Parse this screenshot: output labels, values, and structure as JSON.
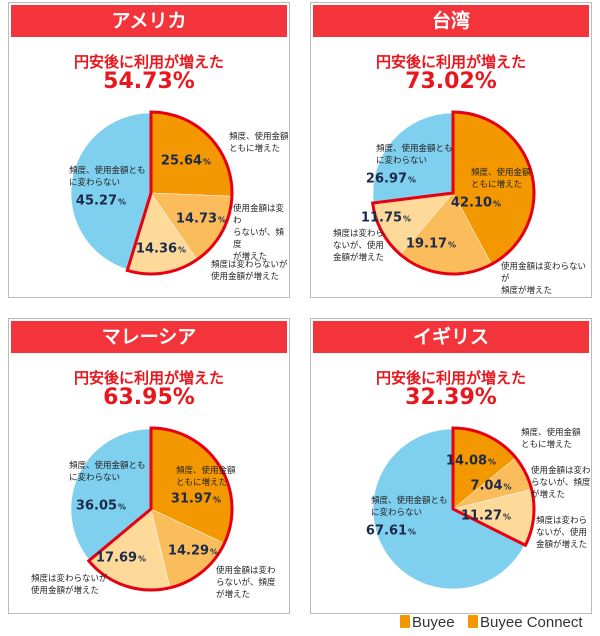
{
  "colors": {
    "header": "#f3343b",
    "accent": "#e8161d",
    "increased_both": "#f39800",
    "amount_only": "#fbbd5c",
    "frequency_only": "#fdd99a",
    "unchanged": "#7fcfee",
    "outline": "#e60012"
  },
  "subtitle": "円安後に利用が増えた",
  "labels": {
    "increased_both": "頻度、使用金額ともに増えた",
    "amount_only": "使用金額は変わらないが、頻度が増えた",
    "frequency_only": "頻度は変わらないが使用金額が増えた",
    "unchanged": "頻度、使用金額ともに変わらない"
  },
  "chart_data": [
    {
      "type": "pie",
      "title": "アメリカ",
      "total_increased": "54.73%",
      "slices": [
        {
          "key": "increased_both",
          "label": "頻度、使用金額\nともに増えた",
          "value": 25.64
        },
        {
          "key": "amount_only",
          "label": "使用金額は変わ\nらないが、頻度\nが増えた",
          "value": 14.73
        },
        {
          "key": "frequency_only",
          "label": "頻度は変わらないが\n使用金額が増えた",
          "value": 14.36
        },
        {
          "key": "unchanged",
          "label": "頻度、使用金額とも\nに変わらない",
          "value": 45.27
        }
      ]
    },
    {
      "type": "pie",
      "title": "台湾",
      "total_increased": "73.02%",
      "slices": [
        {
          "key": "increased_both",
          "label": "頻度、使用金額\nともに増えた",
          "value": 42.1
        },
        {
          "key": "amount_only",
          "label": "使用金額は変わらないが\n頻度が増えた",
          "value": 19.17
        },
        {
          "key": "frequency_only",
          "label": "頻度は変わら\nないが、使用\n金額が増えた",
          "value": 11.75
        },
        {
          "key": "unchanged",
          "label": "頻度、使用金額とも\nに変わらない",
          "value": 26.97
        }
      ]
    },
    {
      "type": "pie",
      "title": "マレーシア",
      "total_increased": "63.95%",
      "slices": [
        {
          "key": "increased_both",
          "label": "頻度、使用金額\nともに増えた",
          "value": 31.97
        },
        {
          "key": "amount_only",
          "label": "使用金額は変わ\nらないが、頻度\nが増えた",
          "value": 14.29
        },
        {
          "key": "frequency_only",
          "label": "頻度は変わらないが\n使用金額が増えた",
          "value": 17.69
        },
        {
          "key": "unchanged",
          "label": "頻度、使用金額とも\nに変わらない",
          "value": 36.05
        }
      ]
    },
    {
      "type": "pie",
      "title": "イギリス",
      "total_increased": "32.39%",
      "slices": [
        {
          "key": "increased_both",
          "label": "頻度、使用金額\nともに増えた",
          "value": 14.08
        },
        {
          "key": "amount_only",
          "label": "使用金額は変わ\nらないが、頻度\nが増えた",
          "value": 7.04
        },
        {
          "key": "frequency_only",
          "label": "頻度は変わら\nないが、使用\n金額が増えた",
          "value": 11.27
        },
        {
          "key": "unchanged",
          "label": "頻度、使用金額とも\nに変わらない",
          "value": 67.61
        }
      ]
    }
  ],
  "percent_sign": "%",
  "footer": {
    "logo1": "Buyee",
    "logo2": "Buyee Connect"
  }
}
